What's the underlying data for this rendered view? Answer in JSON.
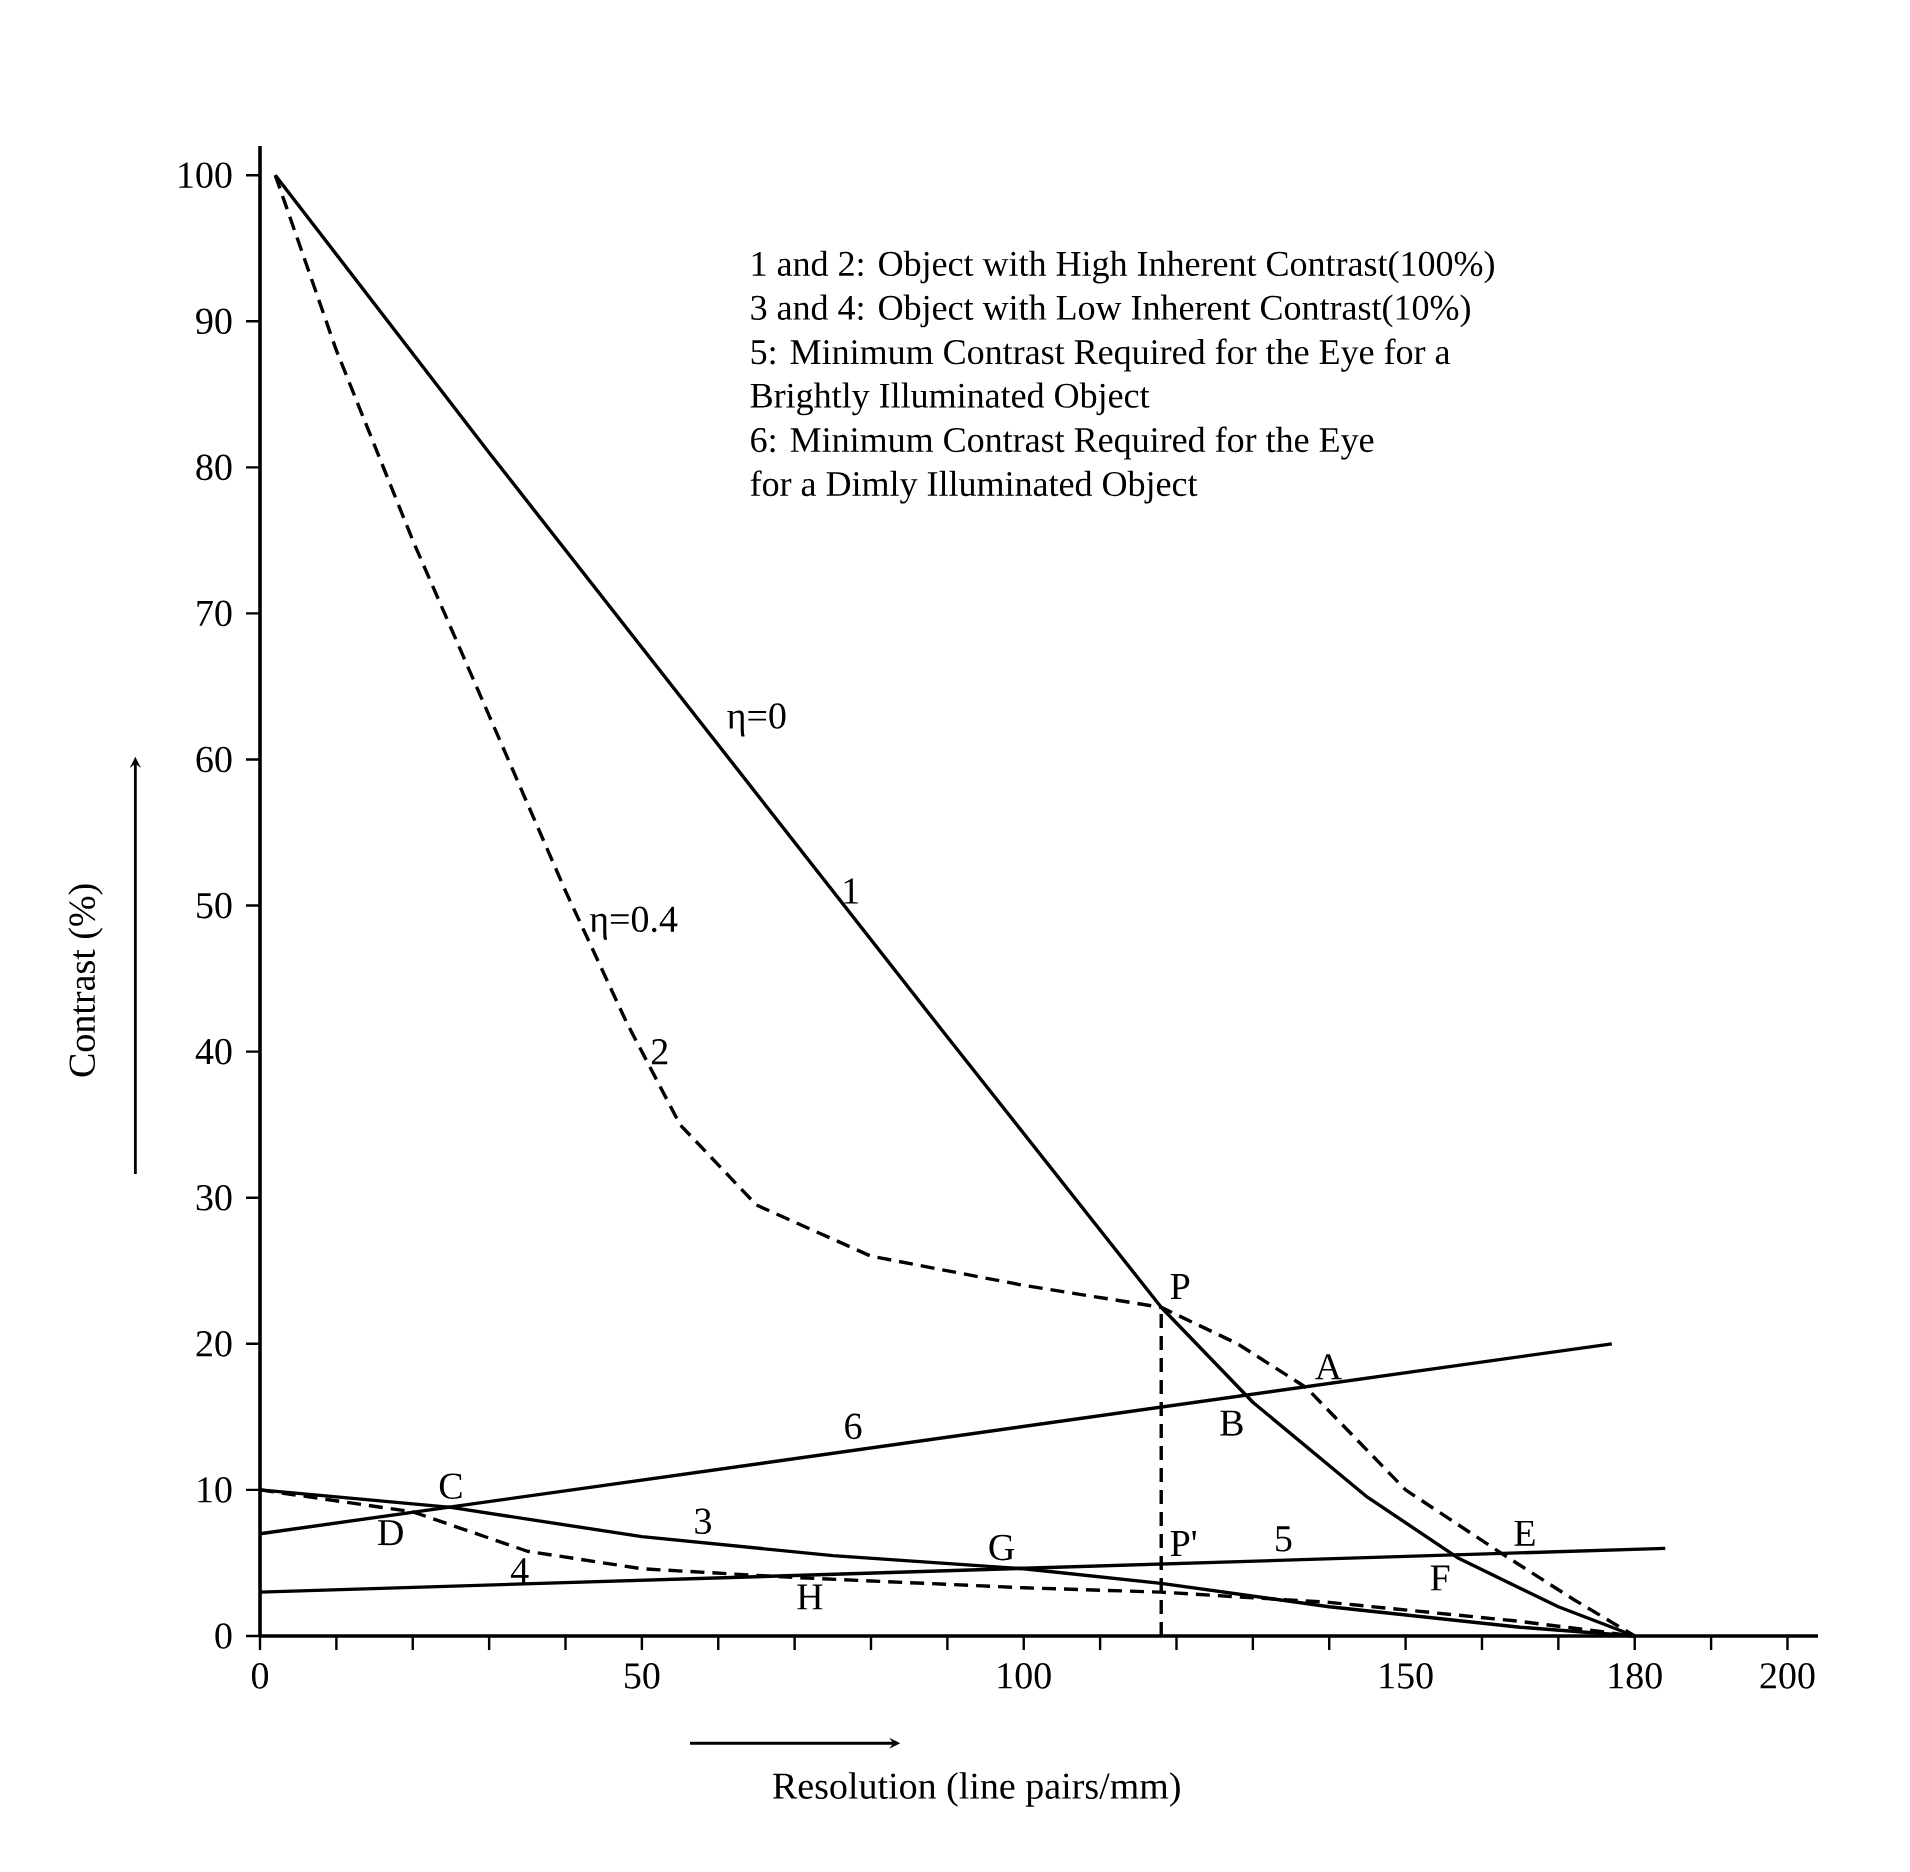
{
  "chart_data": {
    "type": "line",
    "xlabel": "Resolution (line pairs/mm)",
    "ylabel": "Contrast (%)",
    "xlim": [
      0,
      204
    ],
    "ylim": [
      0,
      102
    ],
    "xticks": [
      0,
      {
        "value": 10,
        "label": null
      },
      {
        "value": 20,
        "label": null
      },
      {
        "value": 30,
        "label": null
      },
      {
        "value": 40,
        "label": null
      },
      50,
      {
        "value": 60,
        "label": null
      },
      {
        "value": 70,
        "label": null
      },
      {
        "value": 80,
        "label": null
      },
      {
        "value": 90,
        "label": null
      },
      100,
      {
        "value": 110,
        "label": null
      },
      {
        "value": 120,
        "label": null
      },
      {
        "value": 130,
        "label": null
      },
      {
        "value": 140,
        "label": null
      },
      150,
      {
        "value": 160,
        "label": null
      },
      {
        "value": 170,
        "label": null
      },
      180,
      {
        "value": 190,
        "label": null
      },
      200
    ],
    "yticks": [
      0,
      10,
      20,
      30,
      40,
      50,
      60,
      70,
      80,
      90,
      100
    ],
    "series": [
      {
        "color": "#000000",
        "line_style": "solid",
        "x": [
          2,
          30,
          60,
          90,
          118,
          130,
          145,
          157,
          170,
          180
        ],
        "values": [
          100,
          81,
          61,
          41,
          22.5,
          16,
          9.5,
          5.3,
          2,
          0
        ]
      },
      {
        "color": "#000000",
        "line_style": "dashed",
        "x": [
          2,
          10,
          20,
          30,
          40,
          48,
          55,
          65,
          80,
          100,
          118,
          128,
          137,
          150,
          163,
          172,
          180
        ],
        "values": [
          100,
          88,
          75,
          63,
          51,
          42,
          35,
          29.5,
          26,
          24,
          22.5,
          20,
          17,
          10,
          5.5,
          2.5,
          0
        ]
      },
      {
        "color": "#000000",
        "line_style": "solid",
        "x": [
          0,
          25,
          50,
          75,
          100,
          118,
          140,
          165,
          180
        ],
        "values": [
          10,
          8.8,
          6.8,
          5.5,
          4.6,
          3.6,
          2,
          0.6,
          0
        ]
      },
      {
        "color": "#000000",
        "line_style": "dashed",
        "x": [
          0,
          20,
          35,
          50,
          70,
          100,
          118,
          140,
          165,
          180
        ],
        "values": [
          10,
          8.5,
          5.8,
          4.6,
          4,
          3.3,
          3,
          2.3,
          1,
          0
        ]
      },
      {
        "color": "#000000",
        "line_style": "solid",
        "x": [
          0,
          184
        ],
        "values": [
          3,
          6
        ]
      },
      {
        "color": "#000000",
        "line_style": "solid",
        "x": [
          0,
          177
        ],
        "values": [
          7,
          20
        ]
      },
      {
        "color": "#000000",
        "line_style": "dashed",
        "x": [
          118,
          118
        ],
        "values": [
          0,
          22.5
        ]
      }
    ],
    "annotations": [
      "1 and 2: Object with High Inherent Contrast(100%)",
      "3 and 4: Object with Low Inherent Contrast(10%)",
      "5: Minimum Contrast Required for the Eye for a",
      "Brightly Illuminated Object",
      "6: Minimum Contrast Required for the Eye",
      "for a Dimly Illuminated Object",
      {
        "text": "P",
        "x": 118,
        "y": 22.5
      },
      {
        "text": "A",
        "x": 137,
        "y": 17
      },
      {
        "text": "B",
        "x": 130,
        "y": 16
      },
      {
        "text": "C",
        "x": 25,
        "y": 8.8
      },
      {
        "text": "D",
        "x": 20,
        "y": 8.5
      },
      {
        "text": "E",
        "x": 163,
        "y": 5.6
      },
      {
        "text": "F",
        "x": 157,
        "y": 5.4
      },
      {
        "text": "G",
        "x": 100,
        "y": 4.6
      },
      {
        "text": "H",
        "x": 72,
        "y": 4.1
      },
      {
        "text": "P'",
        "x": 118,
        "y": 4.9
      },
      {
        "text": "η=0",
        "x": 60,
        "y": 61
      },
      {
        "text": "1",
        "x": 75,
        "y": 51
      },
      {
        "text": "η=0.4",
        "x": 42,
        "y": 48.8
      },
      {
        "text": "2",
        "x": 50,
        "y": 40
      },
      {
        "text": "3",
        "x": 58,
        "y": 6.4
      },
      {
        "text": "4",
        "x": 34,
        "y": 5.9
      },
      {
        "text": "5",
        "x": 134,
        "y": 5.2
      },
      {
        "text": "6",
        "x": 80,
        "y": 12.9
      }
    ]
  }
}
